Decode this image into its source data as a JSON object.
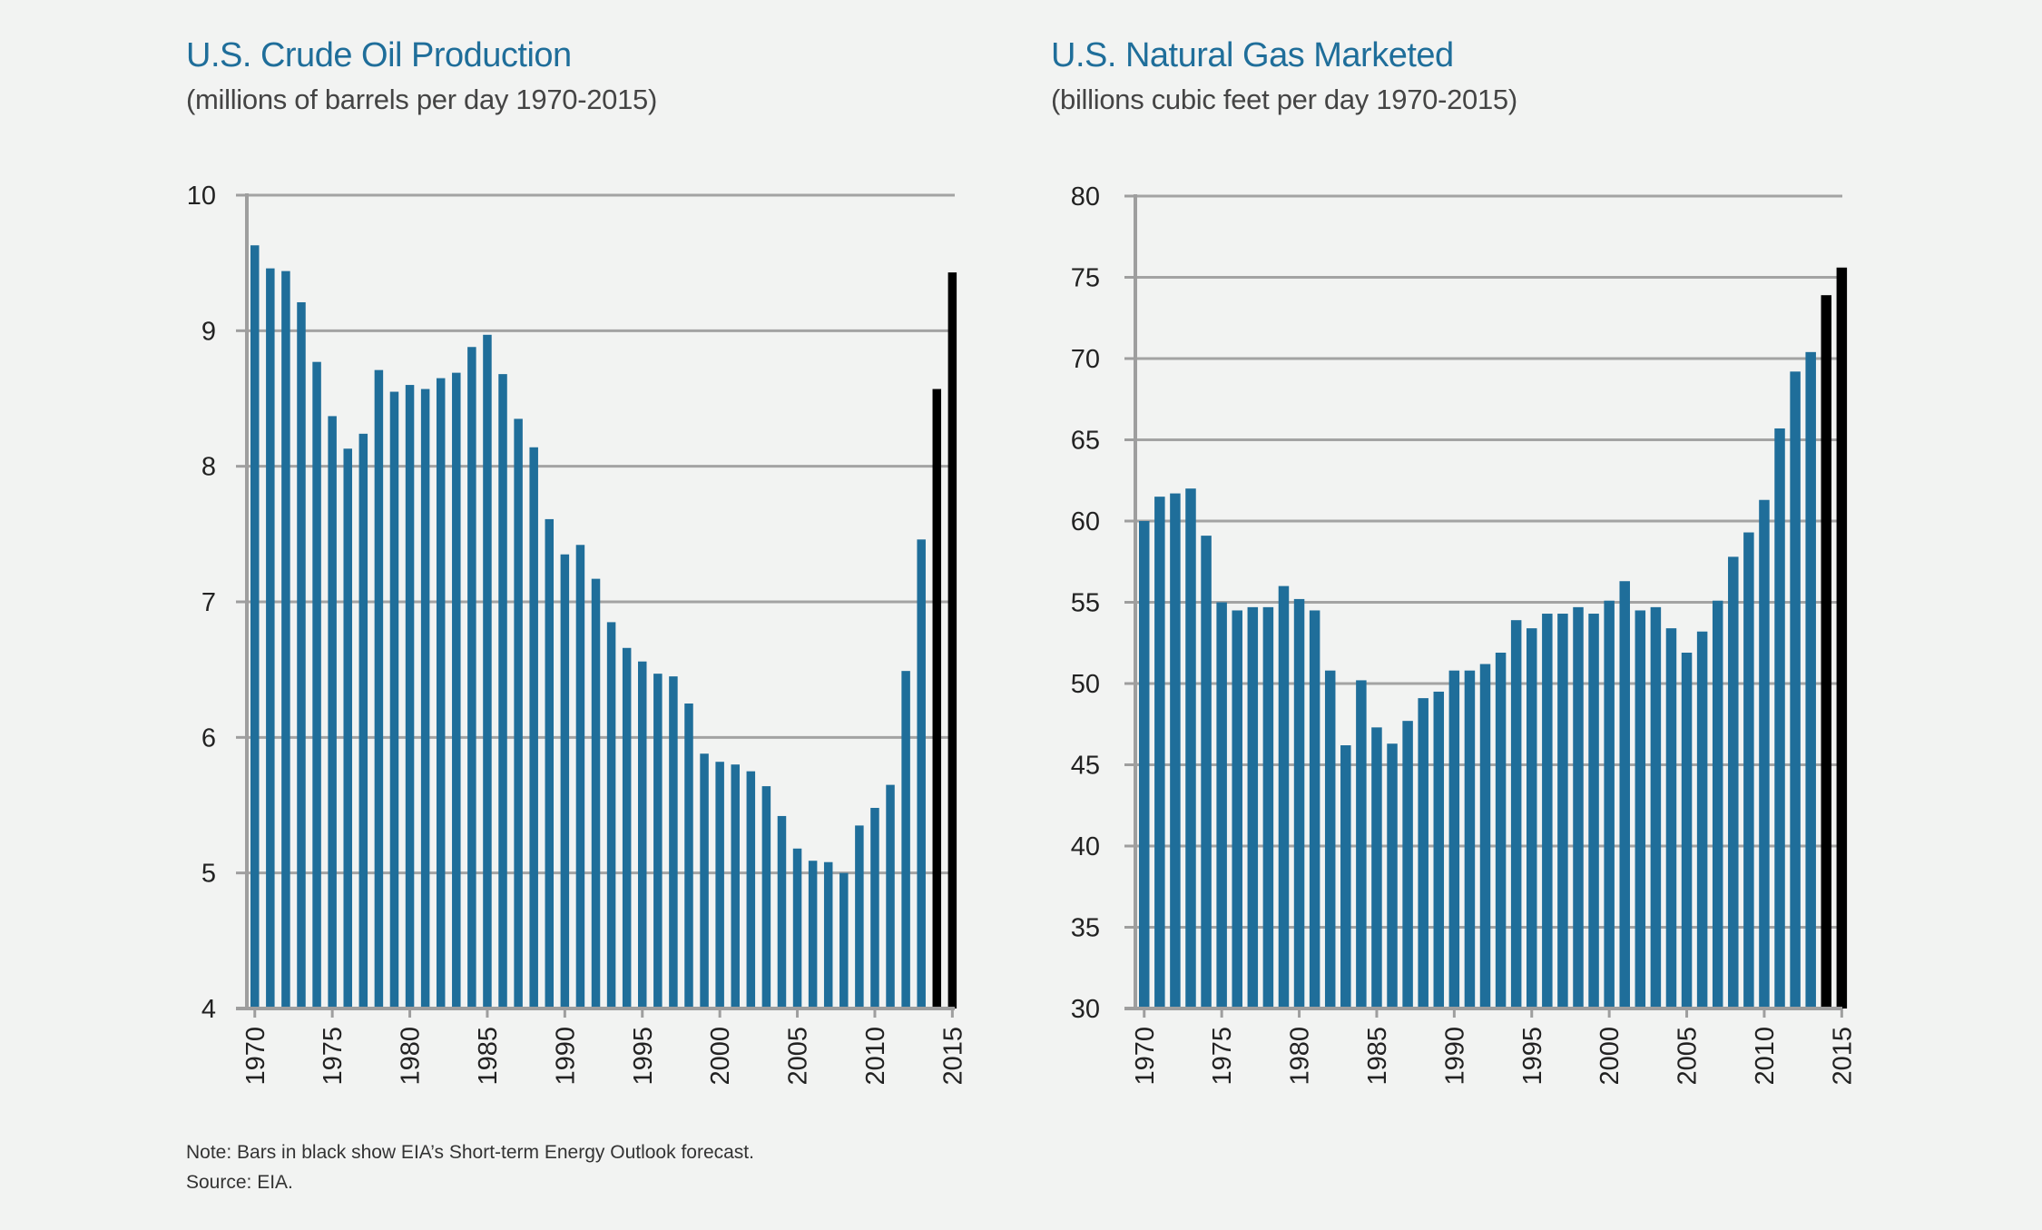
{
  "chart_data": [
    {
      "type": "bar",
      "title": "U.S. Crude Oil Production",
      "subtitle": "(millions of barrels per day 1970-2015)",
      "ylim": [
        4,
        10
      ],
      "yticks": [
        4,
        5,
        6,
        7,
        8,
        9,
        10
      ],
      "xtick_labels": [
        "1970",
        "1975",
        "1980",
        "1985",
        "1990",
        "1995",
        "2000",
        "2005",
        "2010",
        "2015"
      ],
      "categories": [
        1970,
        1971,
        1972,
        1973,
        1974,
        1975,
        1976,
        1977,
        1978,
        1979,
        1980,
        1981,
        1982,
        1983,
        1984,
        1985,
        1986,
        1987,
        1988,
        1989,
        1990,
        1991,
        1992,
        1993,
        1994,
        1995,
        1996,
        1997,
        1998,
        1999,
        2000,
        2001,
        2002,
        2003,
        2004,
        2005,
        2006,
        2007,
        2008,
        2009,
        2010,
        2011,
        2012,
        2013,
        2014,
        2015
      ],
      "values": [
        9.63,
        9.46,
        9.44,
        9.21,
        8.77,
        8.37,
        8.13,
        8.24,
        8.71,
        8.55,
        8.6,
        8.57,
        8.65,
        8.69,
        8.88,
        8.97,
        8.68,
        8.35,
        8.14,
        7.61,
        7.35,
        7.42,
        7.17,
        6.85,
        6.66,
        6.56,
        6.47,
        6.45,
        6.25,
        5.88,
        5.82,
        5.8,
        5.75,
        5.64,
        5.42,
        5.18,
        5.09,
        5.08,
        5.0,
        5.35,
        5.48,
        5.65,
        6.49,
        7.46,
        8.57,
        9.43
      ],
      "forecast": [
        false,
        false,
        false,
        false,
        false,
        false,
        false,
        false,
        false,
        false,
        false,
        false,
        false,
        false,
        false,
        false,
        false,
        false,
        false,
        false,
        false,
        false,
        false,
        false,
        false,
        false,
        false,
        false,
        false,
        false,
        false,
        false,
        false,
        false,
        false,
        false,
        false,
        false,
        false,
        false,
        false,
        false,
        false,
        false,
        true,
        true
      ],
      "colors": {
        "actual": "#1f6e9a",
        "forecast": "#000000",
        "grid": "#a3a3a3",
        "axis": "#9e9e9e"
      }
    },
    {
      "type": "bar",
      "title": "U.S. Natural Gas Marketed",
      "subtitle": "(billions cubic feet per day 1970-2015)",
      "ylim": [
        30,
        80
      ],
      "yticks": [
        30,
        35,
        40,
        45,
        50,
        55,
        60,
        65,
        70,
        75,
        80
      ],
      "xtick_labels": [
        "1970",
        "1975",
        "1980",
        "1985",
        "1990",
        "1995",
        "2000",
        "2005",
        "2010",
        "2015"
      ],
      "categories": [
        1970,
        1971,
        1972,
        1973,
        1974,
        1975,
        1976,
        1977,
        1978,
        1979,
        1980,
        1981,
        1982,
        1983,
        1984,
        1985,
        1986,
        1987,
        1988,
        1989,
        1990,
        1991,
        1992,
        1993,
        1994,
        1995,
        1996,
        1997,
        1998,
        1999,
        2000,
        2001,
        2002,
        2003,
        2004,
        2005,
        2006,
        2007,
        2008,
        2009,
        2010,
        2011,
        2012,
        2013,
        2014,
        2015
      ],
      "values": [
        60.0,
        61.5,
        61.7,
        62.0,
        59.1,
        55.0,
        54.5,
        54.7,
        54.7,
        56.0,
        55.2,
        54.5,
        50.8,
        46.2,
        50.2,
        47.3,
        46.3,
        47.7,
        49.1,
        49.5,
        50.8,
        50.8,
        51.2,
        51.9,
        53.9,
        53.4,
        54.3,
        54.3,
        54.7,
        54.3,
        55.1,
        56.3,
        54.5,
        54.7,
        53.4,
        51.9,
        53.2,
        55.1,
        57.8,
        59.3,
        61.3,
        65.7,
        69.2,
        70.4,
        73.9,
        75.6
      ],
      "forecast": [
        false,
        false,
        false,
        false,
        false,
        false,
        false,
        false,
        false,
        false,
        false,
        false,
        false,
        false,
        false,
        false,
        false,
        false,
        false,
        false,
        false,
        false,
        false,
        false,
        false,
        false,
        false,
        false,
        false,
        false,
        false,
        false,
        false,
        false,
        false,
        false,
        false,
        false,
        false,
        false,
        false,
        false,
        false,
        false,
        true,
        true
      ],
      "colors": {
        "actual": "#1f6e9a",
        "forecast": "#000000",
        "grid": "#a3a3a3",
        "axis": "#9e9e9e"
      }
    }
  ],
  "footnote": {
    "note": "Note: Bars in black show EIA’s Short-term Energy Outlook forecast.",
    "source": "Source: EIA."
  }
}
